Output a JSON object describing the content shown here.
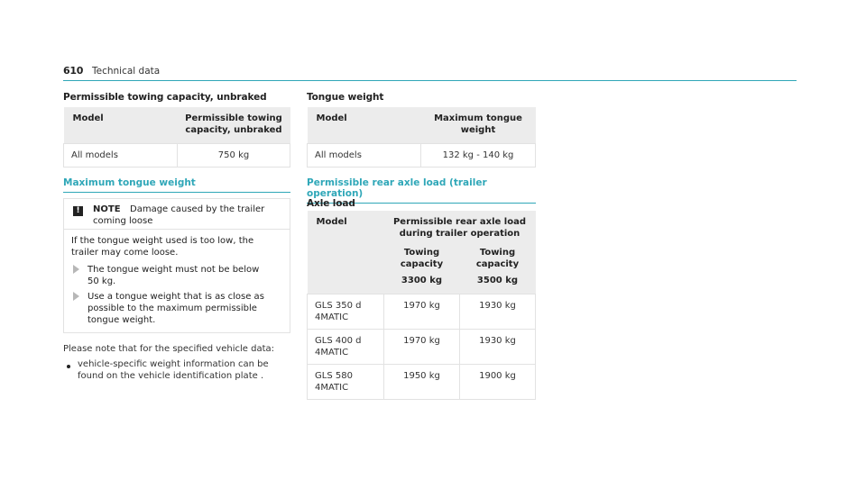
{
  "header": {
    "page_number": "610",
    "title": "Technical data"
  },
  "towing_unbraked": {
    "title": "Permissible towing capacity, unbraked",
    "col_model": "Model",
    "col_capacity_l1": "Permissible towing",
    "col_capacity_l2": "capacity, unbraked",
    "row": {
      "model": "All models",
      "value": "750 kg"
    }
  },
  "tongue_weight": {
    "title": "Tongue weight",
    "col_model": "Model",
    "col_max_l1": "Maximum tongue",
    "col_max_l2": "weight",
    "row": {
      "model": "All models",
      "value": "132 kg - 140 kg"
    }
  },
  "max_tongue_section": {
    "title": "Maximum tongue weight",
    "note": {
      "icon": "exclamation-icon",
      "label": "NOTE",
      "text_l1": "Damage caused by the trailer",
      "text_l2": "coming loose",
      "intro_l1": "If the tongue weight used is too low, the",
      "intro_l2": "trailer may come loose.",
      "step1_l1": "The tongue weight must not be below",
      "step1_l2": "50 kg.",
      "step2_l1": "Use a tongue weight that is as close as",
      "step2_l2": "possible to the maximum permissible",
      "step2_l3": "tongue weight."
    },
    "para_l1": "Please note that for the specified vehicle data:",
    "bullet_l1": "vehicle-specific weight information can be",
    "bullet_l2": "found on the vehicle identification plate ."
  },
  "axle_section": {
    "title": "Permissible rear axle load (trailer operation)",
    "subtitle": "Axle load",
    "col_model": "Model",
    "col_head_l1": "Permissible rear axle load",
    "col_head_l2": "during trailer operation",
    "sub1_l1": "Towing",
    "sub1_l2": "capacity",
    "sub1_l3": "3300 kg",
    "sub2_l1": "Towing",
    "sub2_l2": "capacity",
    "sub2_l3": "3500 kg",
    "rows": [
      {
        "model_l1": "GLS 350 d",
        "model_l2": "4MATIC",
        "v1": "1970 kg",
        "v2": "1930 kg"
      },
      {
        "model_l1": "GLS 400 d",
        "model_l2": "4MATIC",
        "v1": "1970 kg",
        "v2": "1930 kg"
      },
      {
        "model_l1": "GLS 580",
        "model_l2": "4MATIC",
        "v1": "1950 kg",
        "v2": "1900 kg"
      }
    ]
  }
}
